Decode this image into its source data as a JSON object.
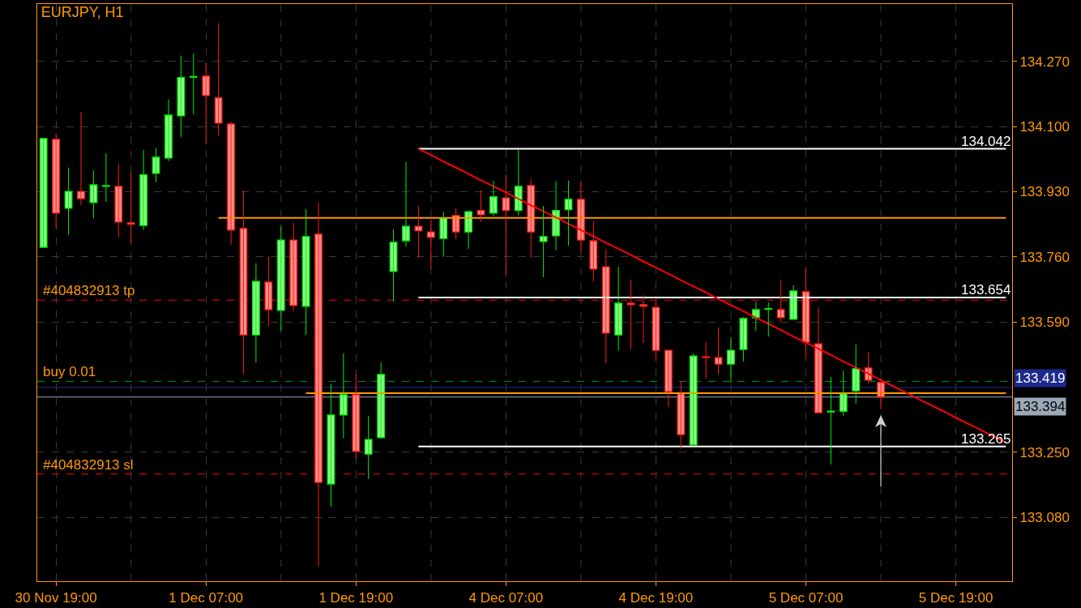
{
  "chart_data": {
    "type": "candlestick",
    "title": "EURJPY, H1",
    "categories": [
      null,
      "30 Nov 19:00",
      null,
      null,
      null,
      null,
      null,
      null,
      null,
      null,
      null,
      null,
      null,
      "1 Dec 07:00",
      null,
      null,
      null,
      null,
      null,
      null,
      null,
      null,
      null,
      null,
      null,
      "1 Dec 19:00",
      null,
      null,
      null,
      null,
      null,
      null,
      null,
      null,
      null,
      null,
      null,
      "4 Dec 07:00",
      null,
      null,
      null,
      null,
      null,
      null,
      null,
      null,
      null,
      null,
      null,
      "4 Dec 19:00",
      null,
      null,
      null,
      null,
      null,
      null,
      null,
      null,
      null,
      null,
      null,
      "5 Dec 07:00",
      null,
      null,
      null,
      null,
      null,
      null,
      null,
      null,
      null,
      null,
      null,
      "5 Dec 19:00",
      null,
      null,
      null,
      null
    ],
    "ohlc": [
      [
        133.785,
        134.069,
        133.785,
        134.069
      ],
      [
        134.067,
        134.082,
        133.836,
        133.874
      ],
      [
        133.887,
        133.993,
        133.817,
        133.931
      ],
      [
        133.931,
        134.139,
        133.895,
        133.912
      ],
      [
        133.902,
        133.986,
        133.861,
        133.948
      ],
      [
        133.944,
        134.031,
        133.904,
        133.946
      ],
      [
        133.944,
        134.003,
        133.811,
        133.851
      ],
      [
        133.849,
        133.982,
        133.796,
        133.845
      ],
      [
        133.842,
        134.039,
        133.83,
        133.974
      ],
      [
        133.978,
        134.044,
        133.955,
        134.02
      ],
      [
        134.018,
        134.171,
        134.01,
        134.13
      ],
      [
        134.128,
        134.285,
        134.073,
        134.228
      ],
      [
        134.229,
        134.291,
        134.132,
        134.231
      ],
      [
        134.232,
        134.266,
        134.054,
        134.181
      ],
      [
        134.175,
        134.37,
        134.077,
        134.109
      ],
      [
        134.107,
        134.113,
        133.792,
        133.83
      ],
      [
        133.834,
        133.933,
        133.455,
        133.556
      ],
      [
        133.556,
        133.743,
        133.484,
        133.696
      ],
      [
        133.694,
        133.762,
        133.578,
        133.622
      ],
      [
        133.62,
        133.84,
        133.567,
        133.804
      ],
      [
        133.804,
        133.849,
        133.618,
        133.633
      ],
      [
        133.631,
        133.885,
        133.556,
        133.813
      ],
      [
        133.819,
        133.902,
        132.951,
        133.171
      ],
      [
        133.167,
        133.427,
        133.108,
        133.347
      ],
      [
        133.347,
        133.508,
        133.286,
        133.4
      ],
      [
        133.4,
        133.453,
        133.233,
        133.252
      ],
      [
        133.245,
        133.345,
        133.18,
        133.283
      ],
      [
        133.288,
        133.484,
        133.286,
        133.453
      ],
      [
        133.722,
        133.832,
        133.643,
        133.798
      ],
      [
        133.802,
        134.008,
        133.787,
        133.84
      ],
      [
        133.84,
        133.893,
        133.758,
        133.828
      ],
      [
        133.825,
        133.857,
        133.728,
        133.811
      ],
      [
        133.808,
        133.878,
        133.76,
        133.861
      ],
      [
        133.868,
        133.887,
        133.806,
        133.825
      ],
      [
        133.825,
        133.881,
        133.781,
        133.878
      ],
      [
        133.881,
        133.933,
        133.851,
        133.87
      ],
      [
        133.874,
        133.959,
        133.866,
        133.917
      ],
      [
        133.914,
        133.974,
        133.709,
        133.881
      ],
      [
        133.881,
        134.039,
        133.868,
        133.944
      ],
      [
        133.946,
        133.963,
        133.758,
        133.825
      ],
      [
        133.8,
        133.893,
        133.707,
        133.813
      ],
      [
        133.815,
        133.957,
        133.777,
        133.881
      ],
      [
        133.883,
        133.959,
        133.789,
        133.91
      ],
      [
        133.91,
        133.955,
        133.77,
        133.804
      ],
      [
        133.802,
        133.853,
        133.696,
        133.728
      ],
      [
        133.734,
        133.781,
        133.482,
        133.561
      ],
      [
        133.556,
        133.734,
        133.516,
        133.639
      ],
      [
        133.639,
        133.7,
        133.52,
        133.635
      ],
      [
        133.635,
        133.66,
        133.535,
        133.631
      ],
      [
        133.628,
        133.643,
        133.489,
        133.516
      ],
      [
        133.516,
        133.516,
        133.368,
        133.408
      ],
      [
        133.402,
        133.436,
        133.258,
        133.296
      ],
      [
        133.269,
        133.508,
        133.269,
        133.501
      ],
      [
        133.499,
        133.537,
        133.442,
        133.497
      ],
      [
        133.497,
        133.576,
        133.453,
        133.48
      ],
      [
        133.48,
        133.55,
        133.432,
        133.516
      ],
      [
        133.518,
        133.603,
        133.487,
        133.599
      ],
      [
        133.601,
        133.643,
        133.567,
        133.622
      ],
      [
        133.623,
        133.641,
        133.552,
        133.625
      ],
      [
        133.622,
        133.7,
        133.59,
        133.601
      ],
      [
        133.597,
        133.686,
        133.597,
        133.671
      ],
      [
        133.669,
        133.732,
        133.497,
        133.537
      ],
      [
        133.533,
        133.628,
        133.353,
        133.353
      ],
      [
        133.355,
        133.446,
        133.218,
        133.357
      ],
      [
        133.357,
        133.463,
        133.345,
        133.402
      ],
      [
        133.41,
        133.531,
        133.377,
        133.468
      ],
      [
        133.47,
        133.512,
        133.43,
        133.438
      ],
      [
        133.432,
        133.444,
        133.362,
        133.394
      ],
      null,
      null,
      null,
      null,
      null,
      null,
      null,
      null,
      null,
      null
    ],
    "series": [
      {
        "type": "line",
        "color": "#ff9900",
        "values": [
          null,
          null,
          null,
          null,
          null,
          null,
          null,
          null,
          null,
          null,
          null,
          null,
          null,
          null,
          133.862,
          133.862,
          133.862,
          133.862,
          133.862,
          133.862,
          133.862,
          133.862,
          133.862,
          133.862,
          133.862,
          133.862,
          133.862,
          133.862,
          133.862,
          133.862,
          133.862,
          133.862,
          133.862,
          133.862,
          133.862,
          133.862,
          133.862,
          133.862,
          133.862,
          133.862,
          133.862,
          133.862,
          133.862,
          133.862,
          133.862,
          133.862,
          133.862,
          133.862,
          133.862,
          133.862,
          133.862,
          133.862,
          133.862,
          133.862,
          133.862,
          133.862,
          133.862,
          133.862,
          133.862,
          133.862,
          133.862,
          133.862,
          133.862,
          133.862,
          133.862,
          133.862,
          133.862,
          133.862,
          133.862,
          133.862,
          133.862,
          133.862,
          133.862,
          133.862,
          133.862,
          133.862,
          133.862,
          133.862
        ]
      },
      {
        "type": "line",
        "color": "#ff9900",
        "values": [
          null,
          null,
          null,
          null,
          null,
          null,
          null,
          null,
          null,
          null,
          null,
          null,
          null,
          null,
          null,
          null,
          null,
          null,
          null,
          null,
          null,
          133.404,
          133.404,
          133.404,
          133.404,
          133.404,
          133.404,
          133.404,
          133.404,
          133.404,
          133.404,
          133.404,
          133.404,
          133.404,
          133.404,
          133.404,
          133.404,
          133.404,
          133.404,
          133.404,
          133.404,
          133.404,
          133.404,
          133.404,
          133.404,
          133.404,
          133.404,
          133.404,
          133.404,
          133.404,
          133.404,
          133.404,
          133.404,
          133.404,
          133.404,
          133.404,
          133.404,
          133.404,
          133.404,
          133.404,
          133.404,
          133.404,
          133.404,
          133.404,
          133.404,
          133.404,
          133.404,
          133.404,
          133.404,
          133.404,
          133.404,
          133.404,
          133.404,
          133.404,
          133.404,
          133.404,
          133.404,
          133.404
        ]
      },
      {
        "type": "line",
        "color": "#ffffff",
        "values": [
          null,
          null,
          null,
          null,
          null,
          null,
          null,
          null,
          null,
          null,
          null,
          null,
          null,
          null,
          null,
          null,
          null,
          null,
          null,
          null,
          null,
          null,
          null,
          null,
          null,
          null,
          null,
          null,
          null,
          null,
          134.042,
          134.042,
          134.042,
          134.042,
          134.042,
          134.042,
          134.042,
          134.042,
          134.042,
          134.042,
          134.042,
          134.042,
          134.042,
          134.042,
          134.042,
          134.042,
          134.042,
          134.042,
          134.042,
          134.042,
          134.042,
          134.042,
          134.042,
          134.042,
          134.042,
          134.042,
          134.042,
          134.042,
          134.042,
          134.042,
          134.042,
          134.042,
          134.042,
          134.042,
          134.042,
          134.042,
          134.042,
          134.042,
          134.042,
          134.042,
          134.042,
          134.042,
          134.042,
          134.042,
          134.042,
          134.042,
          134.042,
          134.042
        ]
      },
      {
        "type": "line",
        "color": "#ffffff",
        "values": [
          null,
          null,
          null,
          null,
          null,
          null,
          null,
          null,
          null,
          null,
          null,
          null,
          null,
          null,
          null,
          null,
          null,
          null,
          null,
          null,
          null,
          null,
          null,
          null,
          null,
          null,
          null,
          null,
          null,
          null,
          133.654,
          133.654,
          133.654,
          133.654,
          133.654,
          133.654,
          133.654,
          133.654,
          133.654,
          133.654,
          133.654,
          133.654,
          133.654,
          133.654,
          133.654,
          133.654,
          133.654,
          133.654,
          133.654,
          133.654,
          133.654,
          133.654,
          133.654,
          133.654,
          133.654,
          133.654,
          133.654,
          133.654,
          133.654,
          133.654,
          133.654,
          133.654,
          133.654,
          133.654,
          133.654,
          133.654,
          133.654,
          133.654,
          133.654,
          133.654,
          133.654,
          133.654,
          133.654,
          133.654,
          133.654,
          133.654,
          133.654,
          133.654
        ]
      },
      {
        "type": "line",
        "color": "#ffffff",
        "values": [
          null,
          null,
          null,
          null,
          null,
          null,
          null,
          null,
          null,
          null,
          null,
          null,
          null,
          null,
          null,
          null,
          null,
          null,
          null,
          null,
          null,
          null,
          null,
          null,
          null,
          null,
          null,
          null,
          null,
          null,
          133.265,
          133.265,
          133.265,
          133.265,
          133.265,
          133.265,
          133.265,
          133.265,
          133.265,
          133.265,
          133.265,
          133.265,
          133.265,
          133.265,
          133.265,
          133.265,
          133.265,
          133.265,
          133.265,
          133.265,
          133.265,
          133.265,
          133.265,
          133.265,
          133.265,
          133.265,
          133.265,
          133.265,
          133.265,
          133.265,
          133.265,
          133.265,
          133.265,
          133.265,
          133.265,
          133.265,
          133.265,
          133.265,
          133.265,
          133.265,
          133.265,
          133.265,
          133.265,
          133.265,
          133.265,
          133.265,
          133.265,
          133.265
        ]
      },
      {
        "type": "line",
        "color": "#ff0000",
        "values": [
          null,
          null,
          null,
          null,
          null,
          null,
          null,
          null,
          null,
          null,
          null,
          null,
          null,
          null,
          null,
          null,
          null,
          null,
          null,
          null,
          null,
          null,
          null,
          null,
          null,
          null,
          null,
          null,
          null,
          null,
          134.042,
          134.026,
          134.009,
          133.993,
          133.977,
          133.96,
          133.944,
          133.928,
          133.911,
          133.895,
          133.879,
          133.863,
          133.846,
          133.83,
          133.814,
          133.797,
          133.781,
          133.765,
          133.748,
          133.732,
          133.716,
          133.699,
          133.683,
          133.667,
          133.65,
          133.634,
          133.618,
          133.601,
          133.585,
          133.569,
          133.552,
          133.536,
          133.52,
          133.504,
          133.487,
          133.471,
          133.455,
          133.438,
          133.422,
          133.406,
          133.389,
          133.373,
          133.357,
          133.34,
          133.324,
          133.308,
          133.291,
          133.275
        ]
      }
    ],
    "annotations": [
      {
        "text": "134.042",
        "y": 134.042
      },
      {
        "text": "133.654",
        "y": 133.654
      },
      {
        "text": "133.265",
        "y": 133.265
      }
    ],
    "ref_lines": [
      {
        "axis": "y",
        "value": 133.647,
        "label": "#404832913 tp",
        "color": "#ff0000",
        "line_style": "dashed"
      },
      {
        "axis": "y",
        "value": 133.435,
        "label": "buy 0.01",
        "color": "#00a000",
        "line_style": "dashed"
      },
      {
        "axis": "y",
        "value": 133.193,
        "label": "#404832913 sl",
        "color": "#ff0000",
        "line_style": "dashed"
      },
      {
        "axis": "y",
        "value": 133.419,
        "label": "133.419",
        "color": "#1c2a8c",
        "line_style": "solid"
      },
      {
        "axis": "y",
        "value": 133.394,
        "label": "133.394",
        "color": "#9aa8b8",
        "line_style": "solid"
      }
    ],
    "ylim": [
      132.913,
      134.42
    ],
    "yticks": [
      {
        "value": 133.08,
        "label": "133.080"
      },
      {
        "value": 133.25,
        "label": "133.250"
      },
      {
        "value": 133.59,
        "label": "133.590"
      },
      {
        "value": 133.76,
        "label": "133.760"
      },
      {
        "value": 133.93,
        "label": "133.930"
      },
      {
        "value": 134.1,
        "label": "134.100"
      },
      {
        "value": 134.27,
        "label": "134.270"
      }
    ],
    "grid": true
  }
}
